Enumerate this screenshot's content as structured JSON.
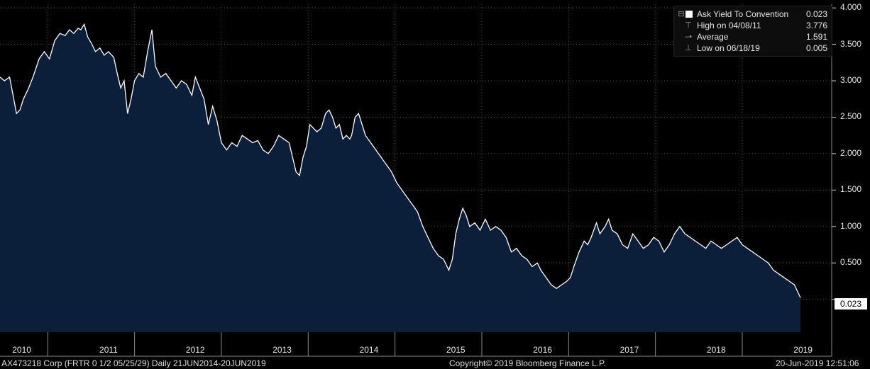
{
  "legend": {
    "series_label": "Ask Yield To Convention",
    "series_value": "0.023",
    "high_label": "High on 04/08/11",
    "high_value": "3.776",
    "avg_label": "Average",
    "avg_value": "1.591",
    "low_label": "Low on 06/18/19",
    "low_value": "0.005"
  },
  "last_value_label": "0.023",
  "footer": {
    "left": "AX473218 Corp (FRTR 0 1/2 05/25/29)  Daily 21JUN2014-20JUN2019",
    "center": "Copyright© 2019 Bloomberg Finance L.P.",
    "right": "20-Jun-2019 12:51:06"
  },
  "colors": {
    "background": "#000000",
    "area_fill": "#0b1f3a",
    "line": "#ffffff",
    "grid": "#4a4a4a",
    "text": "#e6e6e6"
  },
  "chart_data": {
    "type": "area",
    "ylim": [
      -0.45,
      4.05
    ],
    "xlim": [
      2009.95,
      2019.53
    ],
    "y_ticks": [
      "4.000",
      "3.500",
      "3.000",
      "2.500",
      "2.000",
      "1.500",
      "1.000",
      "0.500"
    ],
    "y_tick_values": [
      4.0,
      3.5,
      3.0,
      2.5,
      2.0,
      1.5,
      1.0,
      0.5
    ],
    "x_ticks": [
      "2010",
      "2011",
      "2012",
      "2013",
      "2014",
      "2015",
      "2016",
      "2017",
      "2018",
      "2019"
    ],
    "x_tick_centers": [
      2010.2,
      2011.2,
      2012.2,
      2013.2,
      2014.2,
      2015.2,
      2016.2,
      2017.2,
      2018.2,
      2019.2
    ],
    "year_boundaries": [
      2010.5,
      2011.5,
      2012.5,
      2013.5,
      2014.5,
      2015.5,
      2016.5,
      2017.5,
      2018.5
    ],
    "grid": true,
    "legend_position": "top-right",
    "series": [
      {
        "name": "Ask Yield To Convention",
        "points": [
          [
            2009.95,
            3.05
          ],
          [
            2010.0,
            3.0
          ],
          [
            2010.06,
            3.05
          ],
          [
            2010.1,
            2.8
          ],
          [
            2010.14,
            2.55
          ],
          [
            2010.18,
            2.6
          ],
          [
            2010.22,
            2.75
          ],
          [
            2010.28,
            2.9
          ],
          [
            2010.33,
            3.05
          ],
          [
            2010.4,
            3.3
          ],
          [
            2010.46,
            3.4
          ],
          [
            2010.52,
            3.3
          ],
          [
            2010.58,
            3.55
          ],
          [
            2010.64,
            3.65
          ],
          [
            2010.7,
            3.62
          ],
          [
            2010.75,
            3.7
          ],
          [
            2010.8,
            3.65
          ],
          [
            2010.85,
            3.72
          ],
          [
            2010.88,
            3.7
          ],
          [
            2010.92,
            3.776
          ],
          [
            2010.96,
            3.6
          ],
          [
            2011.0,
            3.52
          ],
          [
            2011.05,
            3.4
          ],
          [
            2011.1,
            3.45
          ],
          [
            2011.15,
            3.35
          ],
          [
            2011.2,
            3.4
          ],
          [
            2011.26,
            3.32
          ],
          [
            2011.3,
            3.1
          ],
          [
            2011.34,
            2.9
          ],
          [
            2011.38,
            3.0
          ],
          [
            2011.42,
            2.55
          ],
          [
            2011.46,
            2.75
          ],
          [
            2011.5,
            3.0
          ],
          [
            2011.55,
            3.1
          ],
          [
            2011.6,
            3.05
          ],
          [
            2011.65,
            3.4
          ],
          [
            2011.7,
            3.7
          ],
          [
            2011.74,
            3.2
          ],
          [
            2011.8,
            3.05
          ],
          [
            2011.86,
            3.1
          ],
          [
            2011.92,
            3.0
          ],
          [
            2011.98,
            2.9
          ],
          [
            2012.04,
            3.0
          ],
          [
            2012.1,
            2.95
          ],
          [
            2012.16,
            2.8
          ],
          [
            2012.2,
            3.05
          ],
          [
            2012.25,
            2.9
          ],
          [
            2012.3,
            2.75
          ],
          [
            2012.35,
            2.4
          ],
          [
            2012.4,
            2.65
          ],
          [
            2012.45,
            2.45
          ],
          [
            2012.5,
            2.15
          ],
          [
            2012.56,
            2.05
          ],
          [
            2012.62,
            2.15
          ],
          [
            2012.68,
            2.1
          ],
          [
            2012.74,
            2.25
          ],
          [
            2012.8,
            2.2
          ],
          [
            2012.86,
            2.15
          ],
          [
            2012.92,
            2.18
          ],
          [
            2012.98,
            2.05
          ],
          [
            2013.04,
            2.0
          ],
          [
            2013.1,
            2.1
          ],
          [
            2013.16,
            2.25
          ],
          [
            2013.22,
            2.2
          ],
          [
            2013.28,
            2.15
          ],
          [
            2013.32,
            1.95
          ],
          [
            2013.36,
            1.75
          ],
          [
            2013.4,
            1.7
          ],
          [
            2013.44,
            1.95
          ],
          [
            2013.48,
            2.1
          ],
          [
            2013.52,
            2.4
          ],
          [
            2013.56,
            2.35
          ],
          [
            2013.6,
            2.3
          ],
          [
            2013.65,
            2.35
          ],
          [
            2013.7,
            2.55
          ],
          [
            2013.74,
            2.6
          ],
          [
            2013.78,
            2.5
          ],
          [
            2013.82,
            2.35
          ],
          [
            2013.86,
            2.4
          ],
          [
            2013.9,
            2.2
          ],
          [
            2013.94,
            2.25
          ],
          [
            2013.98,
            2.2
          ],
          [
            2014.0,
            2.25
          ],
          [
            2014.04,
            2.5
          ],
          [
            2014.08,
            2.55
          ],
          [
            2014.12,
            2.4
          ],
          [
            2014.16,
            2.25
          ],
          [
            2014.22,
            2.15
          ],
          [
            2014.28,
            2.05
          ],
          [
            2014.34,
            1.95
          ],
          [
            2014.4,
            1.85
          ],
          [
            2014.46,
            1.75
          ],
          [
            2014.52,
            1.6
          ],
          [
            2014.58,
            1.5
          ],
          [
            2014.64,
            1.4
          ],
          [
            2014.7,
            1.3
          ],
          [
            2014.76,
            1.2
          ],
          [
            2014.82,
            1.0
          ],
          [
            2014.88,
            0.85
          ],
          [
            2014.94,
            0.7
          ],
          [
            2015.0,
            0.6
          ],
          [
            2015.06,
            0.55
          ],
          [
            2015.12,
            0.4
          ],
          [
            2015.16,
            0.55
          ],
          [
            2015.2,
            0.9
          ],
          [
            2015.24,
            1.1
          ],
          [
            2015.28,
            1.25
          ],
          [
            2015.32,
            1.15
          ],
          [
            2015.36,
            1.0
          ],
          [
            2015.42,
            1.05
          ],
          [
            2015.48,
            0.95
          ],
          [
            2015.54,
            1.1
          ],
          [
            2015.6,
            0.95
          ],
          [
            2015.66,
            1.0
          ],
          [
            2015.72,
            0.95
          ],
          [
            2015.78,
            0.85
          ],
          [
            2015.84,
            0.65
          ],
          [
            2015.9,
            0.7
          ],
          [
            2015.96,
            0.6
          ],
          [
            2016.02,
            0.55
          ],
          [
            2016.08,
            0.45
          ],
          [
            2016.14,
            0.5
          ],
          [
            2016.18,
            0.4
          ],
          [
            2016.24,
            0.3
          ],
          [
            2016.3,
            0.2
          ],
          [
            2016.36,
            0.15
          ],
          [
            2016.42,
            0.2
          ],
          [
            2016.48,
            0.25
          ],
          [
            2016.52,
            0.3
          ],
          [
            2016.56,
            0.45
          ],
          [
            2016.62,
            0.65
          ],
          [
            2016.68,
            0.8
          ],
          [
            2016.72,
            0.75
          ],
          [
            2016.76,
            0.85
          ],
          [
            2016.82,
            1.05
          ],
          [
            2016.86,
            0.9
          ],
          [
            2016.92,
            1.0
          ],
          [
            2016.96,
            1.1
          ],
          [
            2017.0,
            0.95
          ],
          [
            2017.06,
            0.9
          ],
          [
            2017.12,
            0.75
          ],
          [
            2017.18,
            0.7
          ],
          [
            2017.24,
            0.9
          ],
          [
            2017.3,
            0.8
          ],
          [
            2017.36,
            0.7
          ],
          [
            2017.42,
            0.75
          ],
          [
            2017.48,
            0.85
          ],
          [
            2017.54,
            0.8
          ],
          [
            2017.6,
            0.65
          ],
          [
            2017.66,
            0.75
          ],
          [
            2017.72,
            0.9
          ],
          [
            2017.78,
            1.0
          ],
          [
            2017.84,
            0.9
          ],
          [
            2017.9,
            0.85
          ],
          [
            2017.96,
            0.8
          ],
          [
            2018.02,
            0.75
          ],
          [
            2018.08,
            0.7
          ],
          [
            2018.14,
            0.8
          ],
          [
            2018.2,
            0.75
          ],
          [
            2018.26,
            0.7
          ],
          [
            2018.32,
            0.75
          ],
          [
            2018.38,
            0.8
          ],
          [
            2018.44,
            0.85
          ],
          [
            2018.5,
            0.75
          ],
          [
            2018.56,
            0.7
          ],
          [
            2018.62,
            0.65
          ],
          [
            2018.68,
            0.6
          ],
          [
            2018.74,
            0.55
          ],
          [
            2018.8,
            0.5
          ],
          [
            2018.86,
            0.4
          ],
          [
            2018.92,
            0.35
          ],
          [
            2018.98,
            0.3
          ],
          [
            2019.04,
            0.25
          ],
          [
            2019.1,
            0.2
          ],
          [
            2019.14,
            0.1
          ],
          [
            2019.17,
            0.023
          ]
        ]
      }
    ]
  }
}
